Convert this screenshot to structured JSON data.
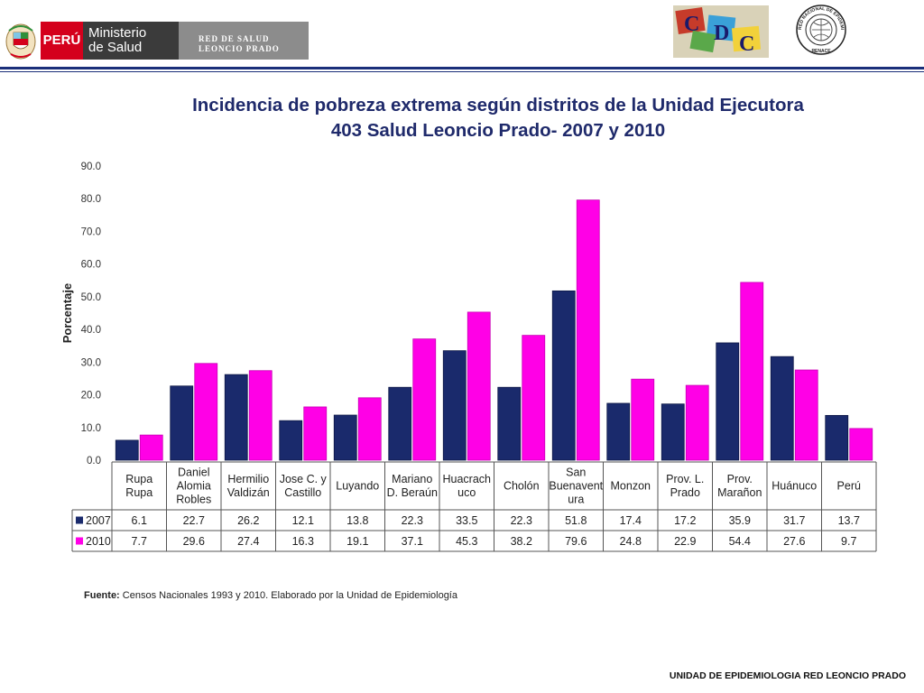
{
  "header": {
    "peru_label": "PERÚ",
    "ministry_line1": "Ministerio",
    "ministry_line2": "de Salud",
    "network_line1": "RED DE SALUD",
    "network_line2": "LEONCIO PRADO",
    "renace_top_text": "RED NACIONAL DE EPIDEMIOLOGIA",
    "renace_bottom_text": "RENACE"
  },
  "title": {
    "line1": "Incidencia de pobreza extrema según distritos de la Unidad Ejecutora",
    "line2": "403 Salud Leoncio Prado- 2007 y 2010"
  },
  "chart_data": {
    "type": "bar",
    "ylabel": "Porcentaje",
    "ylim": [
      0,
      90
    ],
    "yticks": [
      "0.0",
      "10.0",
      "20.0",
      "30.0",
      "40.0",
      "50.0",
      "60.0",
      "70.0",
      "80.0",
      "90.0"
    ],
    "grid": false,
    "categories": [
      [
        "Rupa",
        "Rupa"
      ],
      [
        "Daniel",
        "Alomia",
        "Robles"
      ],
      [
        "Hermilio",
        "Valdizán"
      ],
      [
        "Jose C. y",
        "Castillo"
      ],
      [
        "Luyando"
      ],
      [
        "Mariano",
        "D. Beraún"
      ],
      [
        "Huacrach",
        "uco"
      ],
      [
        "Cholón"
      ],
      [
        "San",
        "Buenavent",
        "ura"
      ],
      [
        "Monzon"
      ],
      [
        "Prov. L.",
        "Prado"
      ],
      [
        "Prov.",
        "Marañon"
      ],
      [
        "Huánuco"
      ],
      [
        "Perú"
      ]
    ],
    "series": [
      {
        "name": "2007",
        "color": "#1a2a6c",
        "values": [
          6.1,
          22.7,
          26.2,
          12.1,
          13.8,
          22.3,
          33.5,
          22.3,
          51.8,
          17.4,
          17.2,
          35.9,
          31.7,
          13.7
        ],
        "labels": [
          "6.1",
          "22.7",
          "26.2",
          "12.1",
          "13.8",
          "22.3",
          "33.5",
          "22.3",
          "51.8",
          "17.4",
          "17.2",
          "35.9",
          "31.7",
          "13.7"
        ]
      },
      {
        "name": "2010",
        "color": "#ff00e6",
        "values": [
          7.7,
          29.6,
          27.4,
          16.3,
          19.1,
          37.1,
          45.3,
          38.2,
          79.6,
          24.8,
          22.9,
          54.4,
          27.6,
          9.7
        ],
        "labels": [
          "7.7",
          "29.6",
          "27.4",
          "16.3",
          "19.1",
          "37.1",
          "45.3",
          "38.2",
          "79.6",
          "24.8",
          "22.9",
          "54.4",
          "27.6",
          "9.7"
        ]
      }
    ]
  },
  "source": {
    "label": "Fuente:",
    "text": " Censos Nacionales 1993 y 2010. Elaborado por la Unidad  de Epidemiología"
  },
  "footer": "UNIDAD  DE EPIDEMIOLOGIA RED LEONCIO PRADO"
}
